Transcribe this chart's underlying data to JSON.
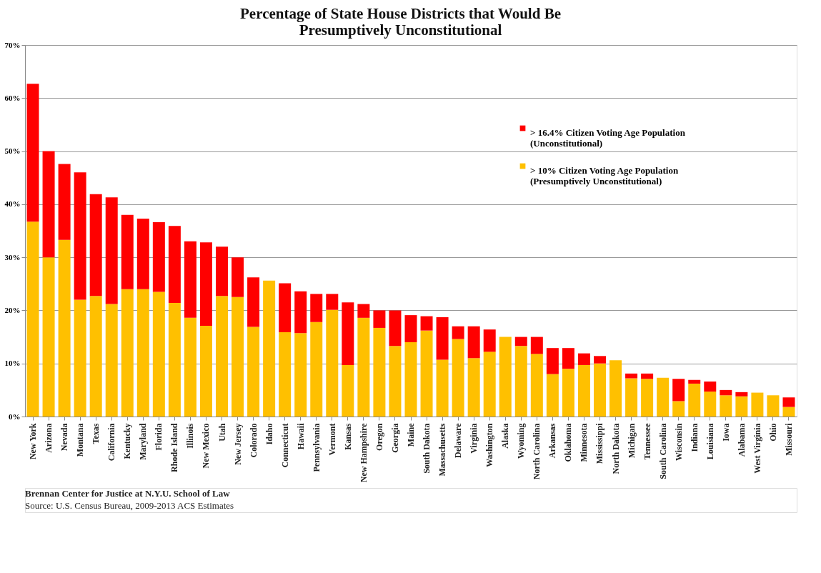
{
  "chart_data": {
    "type": "bar",
    "stacked": true,
    "title": [
      "Percentage of State House Districts that Would Be",
      "Presumptively Unconstitutional"
    ],
    "categories": [
      "New York",
      "Arizona",
      "Nevada",
      "Montana",
      "Texas",
      "California",
      "Kentucky",
      "Maryland",
      "Florida",
      "Rhode Island",
      "Illinois",
      "New Mexico",
      "Utah",
      "New Jersey",
      "Colorado",
      "Idaho",
      "Connecticut",
      "Hawaii",
      "Pennsylvania",
      "Vermont",
      "Kansas",
      "New Hampshire",
      "Oregon",
      "Georgia",
      "Maine",
      "South Dakota",
      "Massachusetts",
      "Delaware",
      "Virginia",
      "Washington",
      "Alaska",
      "Wyoming",
      "North Carolina",
      "Arkansas",
      "Oklahoma",
      "Minnesota",
      "Mississippi",
      "North Dakota",
      "Michigan",
      "Tennessee",
      "South Carolina",
      "Wisconsin",
      "Indiana",
      "Louisiana",
      "Iowa",
      "Alabama",
      "West Virginia",
      "Ohio",
      "Missouri"
    ],
    "series": [
      {
        "name": "> 10% Citizen Voting Age Population\n(Presumptively Unconstitutional)",
        "color": "#ffc000",
        "values": [
          36.7,
          30.0,
          33.3,
          22.0,
          22.7,
          21.2,
          24.0,
          24.0,
          23.5,
          21.4,
          18.6,
          17.1,
          22.7,
          22.5,
          16.9,
          25.6,
          15.9,
          15.7,
          17.8,
          20.1,
          9.7,
          18.6,
          16.7,
          13.3,
          14.0,
          16.2,
          10.7,
          14.6,
          11.0,
          12.2,
          15.0,
          13.3,
          11.8,
          8.0,
          9.0,
          9.7,
          10.0,
          10.6,
          7.2,
          7.1,
          7.3,
          2.9,
          6.2,
          4.7,
          4.0,
          3.8,
          4.5,
          4.0,
          1.8
        ]
      },
      {
        "name": "> 16.4% Citizen Voting Age Population\n(Unconstitutional)",
        "color": "#ff0000",
        "values": [
          26.0,
          20.0,
          14.3,
          24.0,
          19.2,
          20.1,
          14.0,
          13.3,
          13.1,
          14.5,
          14.4,
          15.7,
          9.3,
          7.5,
          9.3,
          0,
          9.2,
          7.9,
          5.3,
          3.0,
          11.8,
          2.6,
          3.3,
          6.7,
          5.1,
          2.7,
          8.0,
          2.4,
          6.0,
          4.2,
          0,
          1.7,
          3.2,
          4.9,
          3.9,
          2.2,
          1.4,
          0,
          0.9,
          1.0,
          0,
          4.2,
          0.7,
          1.9,
          1.0,
          0.8,
          0,
          0,
          1.8
        ]
      }
    ],
    "ylim": [
      0,
      70
    ],
    "yticks": [
      {
        "value": 0,
        "label": "0%"
      },
      {
        "value": 10,
        "label": "10%"
      },
      {
        "value": 20,
        "label": "20%"
      },
      {
        "value": 30,
        "label": "30%"
      },
      {
        "value": 40,
        "label": "40%"
      },
      {
        "value": 50,
        "label": "50%"
      },
      {
        "value": 60,
        "label": "60%"
      },
      {
        "value": 70,
        "label": "70%"
      }
    ],
    "grid": "y",
    "legend": "top right",
    "annotations": [
      "Brennan Center for Justice at N.Y.U. School of Law",
      "Source: U.S. Census Bureau, 2009-2013 ACS Estimates"
    ]
  }
}
